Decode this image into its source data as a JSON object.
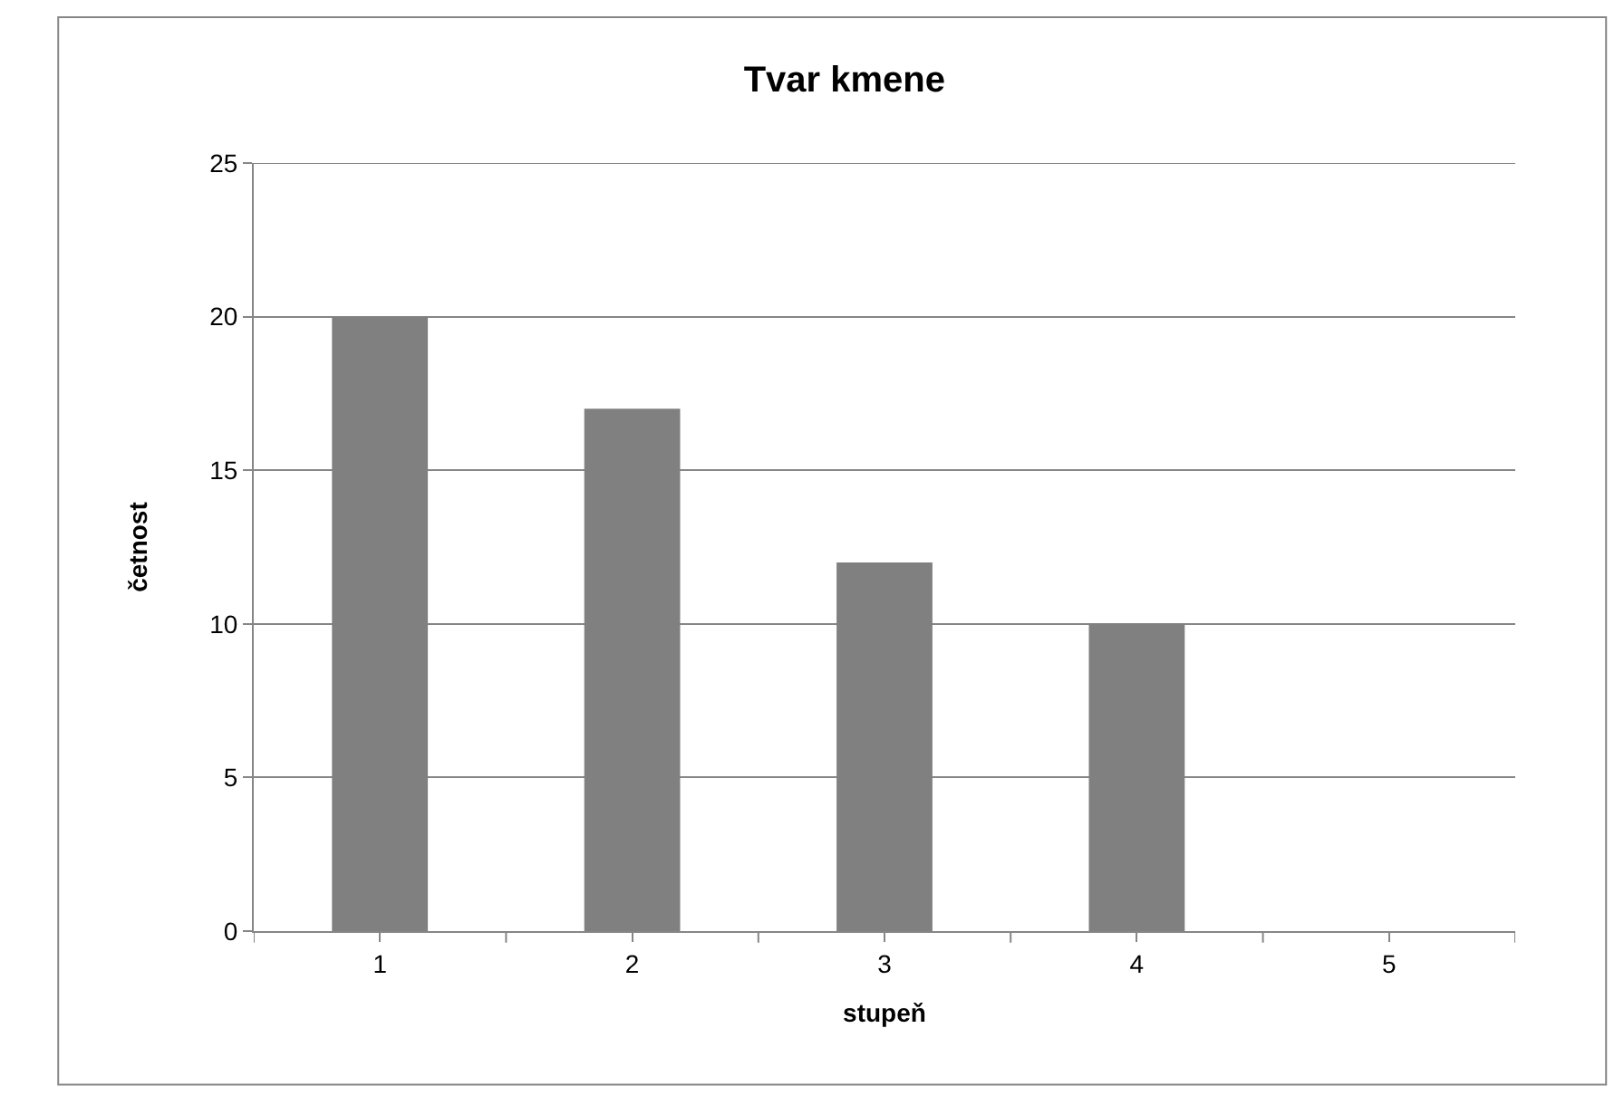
{
  "chart_data": {
    "type": "bar",
    "title": "Tvar kmene",
    "xlabel": "stupeň",
    "ylabel": "četnost",
    "categories": [
      "1",
      "2",
      "3",
      "4",
      "5"
    ],
    "values": [
      20,
      17,
      12,
      10,
      0
    ],
    "color": "#808080",
    "ylim": [
      0,
      25
    ],
    "yticks": [
      0,
      5,
      10,
      15,
      20,
      25
    ],
    "grid": "y"
  }
}
